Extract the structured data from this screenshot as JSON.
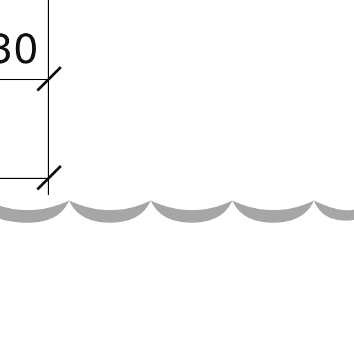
{
  "drawing": {
    "dimension_label": "30"
  },
  "colors": {
    "line": "#111111",
    "wave": "#a6a6a6",
    "background": "#ffffff"
  }
}
